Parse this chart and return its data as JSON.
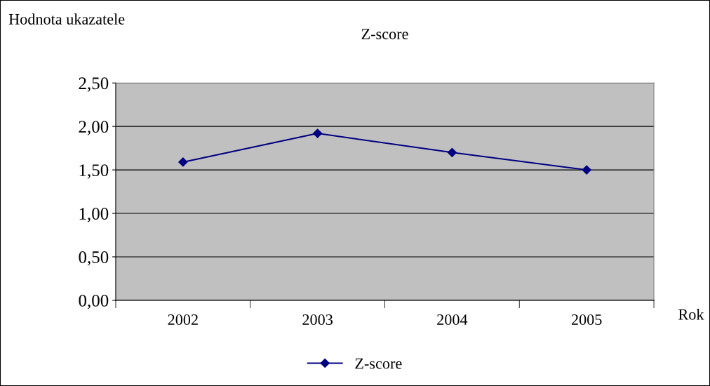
{
  "chart_data": {
    "type": "line",
    "title": "Z-score",
    "ylabel": "Hodnota ukazatele",
    "xlabel": "Rok",
    "categories": [
      "2002",
      "2003",
      "2004",
      "2005"
    ],
    "series": [
      {
        "name": "Z-score",
        "color": "#000080",
        "values": [
          1.59,
          1.92,
          1.7,
          1.5
        ]
      }
    ],
    "ylim": [
      0,
      2.5
    ],
    "yticks": [
      {
        "value": 0,
        "label": "0,00"
      },
      {
        "value": 0.5,
        "label": "0,50"
      },
      {
        "value": 1,
        "label": "1,00"
      },
      {
        "value": 1.5,
        "label": "1,50"
      },
      {
        "value": 2,
        "label": "2,00"
      },
      {
        "value": 2.5,
        "label": "2,50"
      }
    ],
    "grid": "y",
    "legend": "bottom",
    "marker": "diamond",
    "line_style": "solid"
  }
}
